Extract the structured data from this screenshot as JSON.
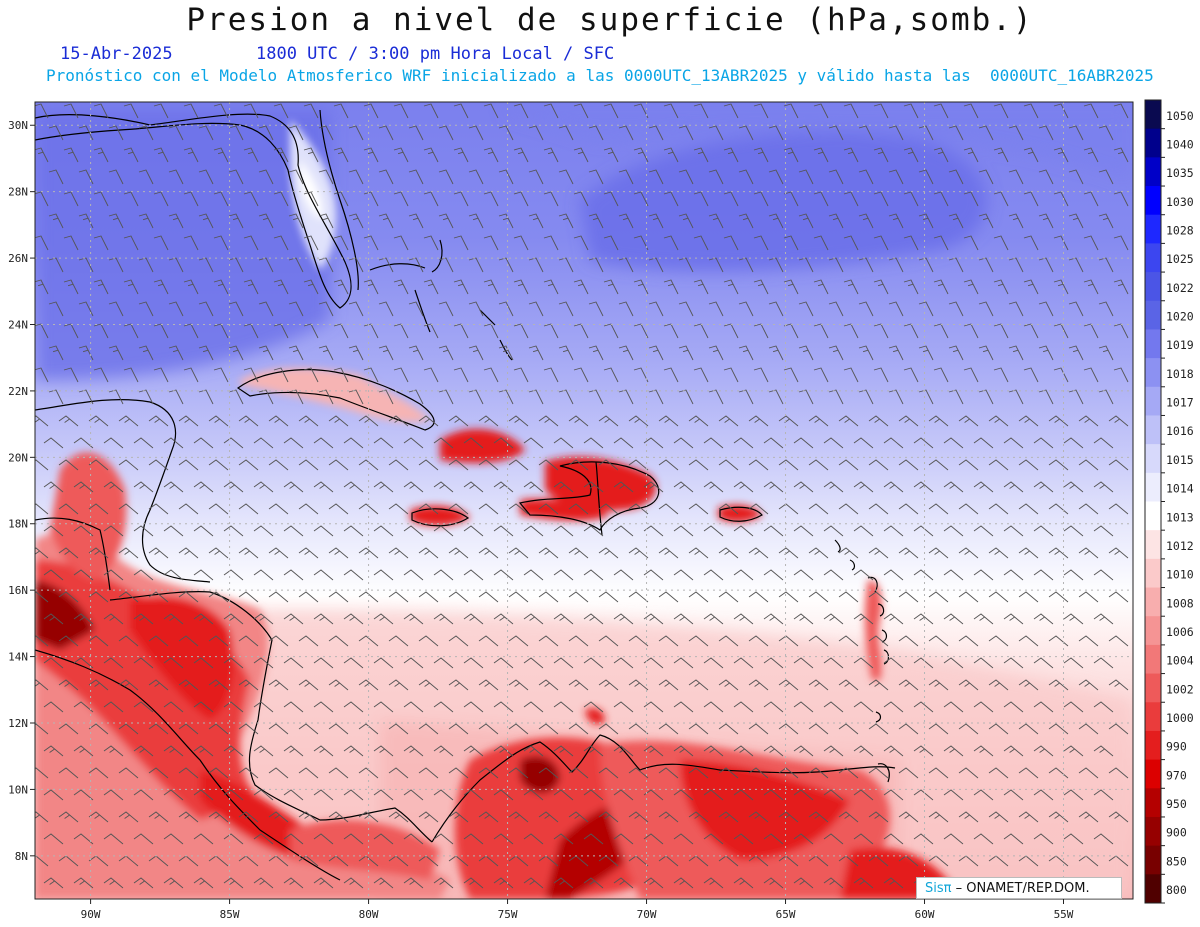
{
  "title": "Presion a nivel de superficie (hPa,somb.)",
  "date": "15-Abr-2025",
  "time_info": "1800 UTC / 3:00 pm Hora Local / SFC",
  "forecast_info": "Pronóstico con el Modelo Atmosferico WRF inicializado a las 0000UTC_13ABR2025 y válido hasta las  0000UTC_16ABR2025",
  "credit": {
    "brand": "Sisπ",
    "text": " – ONAMET/REP.DOM."
  },
  "map": {
    "lon_range": [
      -92,
      -52.5
    ],
    "lat_range": [
      6.7,
      30.7
    ],
    "lat_labels": [
      "30N",
      "28N",
      "26N",
      "24N",
      "22N",
      "20N",
      "18N",
      "16N",
      "14N",
      "12N",
      "10N",
      "8N"
    ],
    "lat_values": [
      30,
      28,
      26,
      24,
      22,
      20,
      18,
      16,
      14,
      12,
      10,
      8
    ],
    "lon_labels": [
      "90W",
      "85W",
      "80W",
      "75W",
      "70W",
      "65W",
      "60W",
      "55W"
    ],
    "lon_values": [
      -90,
      -85,
      -80,
      -75,
      -70,
      -65,
      -60,
      -55
    ]
  },
  "colorbar": {
    "labels": [
      "1050",
      "1040",
      "1035",
      "1030",
      "1028",
      "1025",
      "1022",
      "1020",
      "1019",
      "1018",
      "1017",
      "1016",
      "1015",
      "1014",
      "1013",
      "1012",
      "1010",
      "1008",
      "1006",
      "1004",
      "1002",
      "1000",
      "990",
      "970",
      "950",
      "900",
      "850",
      "800"
    ],
    "colors": [
      "#0a0a50",
      "#00008c",
      "#0000c8",
      "#0000ff",
      "#1e28ff",
      "#3c46f0",
      "#4b55e6",
      "#5a64e6",
      "#7378ee",
      "#8c91f2",
      "#a5a9f5",
      "#bec1f8",
      "#d7d9fb",
      "#ecedfd",
      "#ffffff",
      "#fde4e4",
      "#fbcaca",
      "#f8aeae",
      "#f59494",
      "#f27878",
      "#ee5a5a",
      "#ea3c3c",
      "#e41e1e",
      "#dc0000",
      "#b40000",
      "#960000",
      "#780000",
      "#500000"
    ]
  }
}
